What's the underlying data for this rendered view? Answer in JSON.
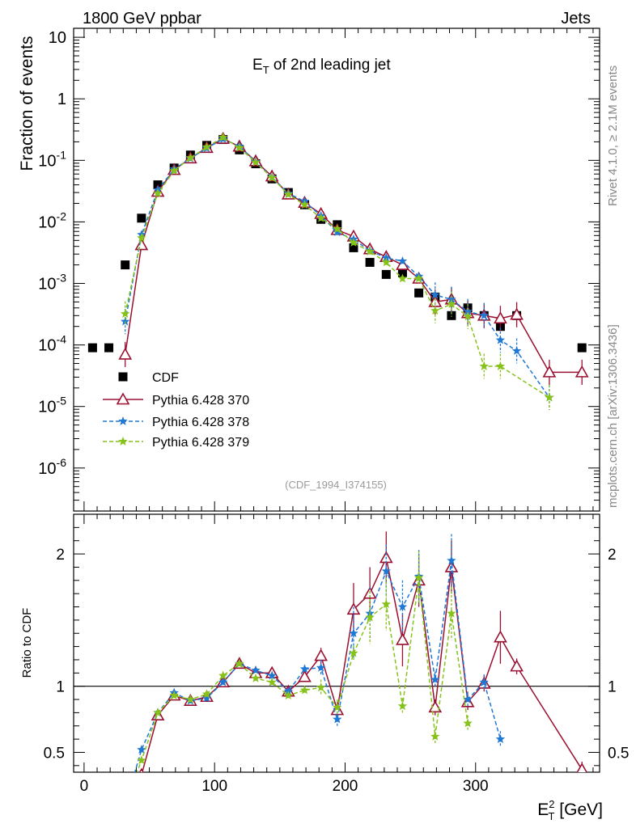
{
  "header": {
    "left": "1800 GeV ppbar",
    "right": "Jets",
    "side_top": "Rivet 4.1.0, ≥ 2.1M events",
    "side_bottom": "mcplots.cern.ch [arXiv:1306.3436]"
  },
  "chart_data": {
    "type": "scatter",
    "title": "E_T of 2nd leading jet",
    "analysis_id": "(CDF_1994_I374155)",
    "xlabel": "E_T^2 [GeV]",
    "xlim": [
      -8,
      395
    ],
    "x_ticks": [
      0,
      100,
      200,
      300
    ],
    "x_tick_labels": [
      "0",
      "100",
      "200",
      "300"
    ],
    "main": {
      "ylabel": "Fraction of events",
      "yscale": "log",
      "ylim": [
        2e-07,
        14
      ],
      "y_ticks": [
        1e-06,
        1e-05,
        0.0001,
        0.001,
        0.01,
        0.1,
        1,
        10
      ],
      "y_tick_labels": [
        "10^-6",
        "10^-5",
        "10^-4",
        "10^-3",
        "10^-2",
        "10^-1",
        "1",
        "10"
      ]
    },
    "ratio": {
      "ylabel": "Ratio to CDF",
      "ylim": [
        0.35,
        2.3
      ],
      "y_ticks": [
        0.5,
        1,
        2
      ],
      "y_tick_labels": [
        "0.5",
        "1",
        "2"
      ]
    },
    "legend_position": "lower-left",
    "series": [
      {
        "name": "CDF",
        "color": "#000000",
        "marker": "square",
        "x": [
          6.5,
          19,
          31.5,
          44,
          56.5,
          69,
          81.5,
          94,
          106.5,
          119,
          131.5,
          144,
          156.5,
          169,
          181.5,
          194,
          206.5,
          219,
          231.5,
          244,
          256.5,
          269,
          281.5,
          294,
          306.5,
          319,
          331.5,
          381.5
        ],
        "y": [
          9e-05,
          9e-05,
          0.002,
          0.0115,
          0.04,
          0.075,
          0.122,
          0.175,
          0.218,
          0.148,
          0.088,
          0.05,
          0.03,
          0.019,
          0.011,
          0.009,
          0.0038,
          0.0022,
          0.0014,
          0.0015,
          0.0007,
          0.0006,
          0.0003,
          0.0004,
          0.0003,
          0.0002,
          0.0003,
          9e-05
        ]
      },
      {
        "name": "Pythia 6.428 370",
        "color": "#9a1030",
        "marker": "triangle",
        "line": "solid",
        "x": [
          31.5,
          44,
          56.5,
          69,
          81.5,
          94,
          106.5,
          119,
          131.5,
          144,
          156.5,
          169,
          181.5,
          194,
          206.5,
          219,
          231.5,
          244,
          256.5,
          269,
          281.5,
          294,
          306.5,
          319,
          331.5,
          356.5,
          381.5
        ],
        "y": [
          7e-05,
          0.0042,
          0.031,
          0.07,
          0.108,
          0.16,
          0.225,
          0.168,
          0.097,
          0.055,
          0.028,
          0.0205,
          0.0135,
          0.0074,
          0.0058,
          0.0036,
          0.0027,
          0.002,
          0.0012,
          0.0005,
          0.00055,
          0.00033,
          0.0003,
          0.00027,
          0.00031,
          3.6e-05,
          3.6e-05
        ],
        "ratio": [
          null,
          0.33,
          0.78,
          0.93,
          0.89,
          0.92,
          1.03,
          1.17,
          1.1,
          1.1,
          0.96,
          1.07,
          1.23,
          0.82,
          1.58,
          1.7,
          1.97,
          1.35,
          1.8,
          0.84,
          1.9,
          0.88,
          1.02,
          1.37,
          1.15,
          null,
          0.37
        ]
      },
      {
        "name": "Pythia 6.428 378",
        "color": "#1f78d4",
        "marker": "star",
        "line": "dashed",
        "x": [
          31.5,
          44,
          56.5,
          69,
          81.5,
          94,
          106.5,
          119,
          131.5,
          144,
          156.5,
          169,
          181.5,
          194,
          206.5,
          219,
          231.5,
          244,
          256.5,
          269,
          281.5,
          294,
          306.5,
          319,
          331.5,
          356.5
        ],
        "y": [
          0.00024,
          0.0062,
          0.033,
          0.072,
          0.108,
          0.158,
          0.222,
          0.17,
          0.095,
          0.053,
          0.029,
          0.0215,
          0.0125,
          0.0068,
          0.0052,
          0.0034,
          0.0026,
          0.0023,
          0.0013,
          0.00065,
          0.00055,
          0.00035,
          0.0003,
          0.00012,
          8e-05,
          1.4e-05
        ],
        "ratio": [
          null,
          0.52,
          0.8,
          0.95,
          0.89,
          0.91,
          1.03,
          1.17,
          1.12,
          1.08,
          0.96,
          1.13,
          1.14,
          0.75,
          1.4,
          1.55,
          1.87,
          1.6,
          1.83,
          1.05,
          1.95,
          0.9,
          1.03,
          0.6,
          null,
          null
        ],
        "ratio_beyond": [
          0.0
        ]
      },
      {
        "name": "Pythia 6.428 379",
        "color": "#86c21a",
        "marker": "star",
        "line": "dashed",
        "x": [
          31.5,
          44,
          56.5,
          69,
          81.5,
          94,
          106.5,
          119,
          131.5,
          144,
          156.5,
          169,
          181.5,
          194,
          206.5,
          219,
          231.5,
          244,
          256.5,
          269,
          281.5,
          294,
          306.5,
          319,
          356.5
        ],
        "y": [
          0.00032,
          0.0055,
          0.029,
          0.068,
          0.11,
          0.165,
          0.236,
          0.16,
          0.093,
          0.052,
          0.028,
          0.019,
          0.0115,
          0.0077,
          0.0046,
          0.0033,
          0.0022,
          0.0012,
          0.0012,
          0.00036,
          0.00046,
          0.00029,
          4.5e-05,
          4.5e-05,
          1.4e-05
        ],
        "ratio": [
          null,
          0.44,
          0.8,
          0.93,
          0.9,
          0.94,
          1.08,
          1.17,
          1.06,
          1.03,
          0.93,
          0.97,
          0.99,
          0.84,
          1.25,
          1.52,
          1.62,
          0.85,
          1.82,
          0.62,
          1.55,
          0.72,
          null,
          null,
          null
        ]
      }
    ]
  }
}
